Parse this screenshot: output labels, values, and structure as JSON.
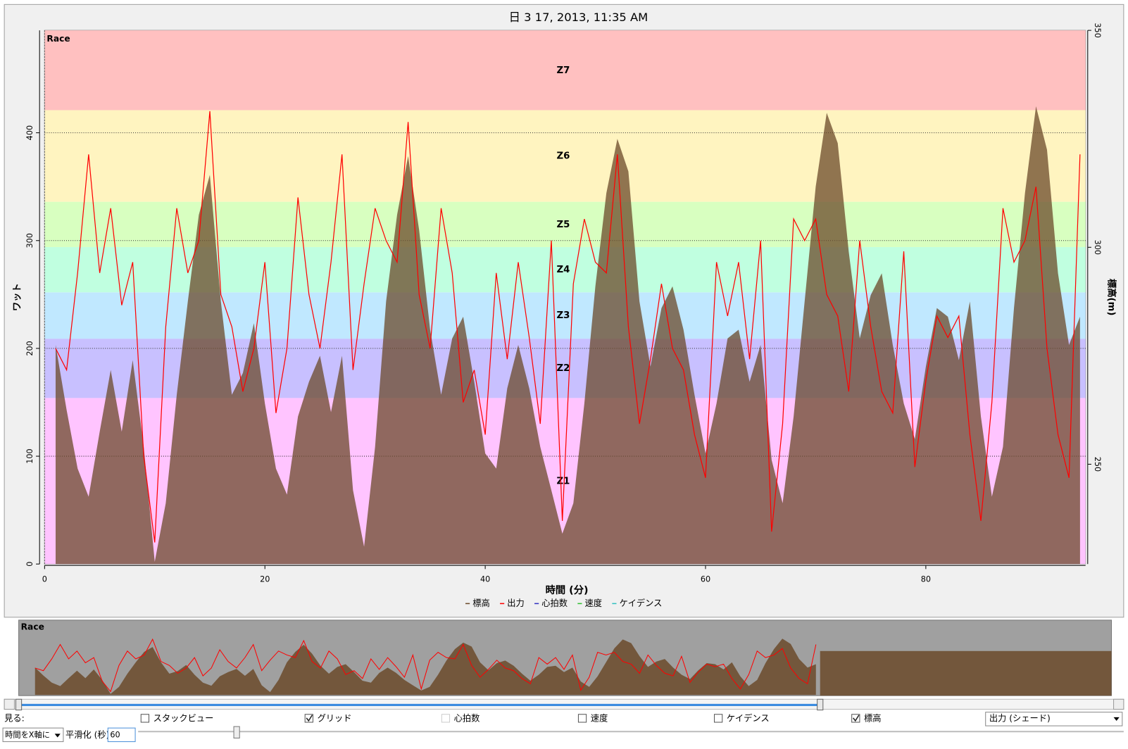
{
  "chart_data": {
    "type": "line",
    "title": "日 3 17, 2013, 11:35 AM",
    "corner_label": "Race",
    "xlabel": "時間 (分)",
    "ylabel": "ワット",
    "y2label": "標高(m)",
    "x": [
      1,
      2,
      3,
      4,
      5,
      6,
      7,
      8,
      9,
      10,
      11,
      12,
      13,
      14,
      15,
      16,
      17,
      18,
      19,
      20,
      21,
      22,
      23,
      24,
      25,
      26,
      27,
      28,
      29,
      30,
      31,
      32,
      33,
      34,
      35,
      36,
      37,
      38,
      39,
      40,
      41,
      42,
      43,
      44,
      45,
      46,
      47,
      48,
      49,
      50,
      51,
      52,
      53,
      54,
      55,
      56,
      57,
      58,
      59,
      60,
      61,
      62,
      63,
      64,
      65,
      66,
      67,
      68,
      69,
      70,
      71,
      72,
      73,
      74,
      75,
      76,
      77,
      78,
      79,
      80,
      81,
      82,
      83,
      84,
      85,
      86,
      87,
      88,
      89,
      90,
      91,
      92,
      93,
      94
    ],
    "xlim": [
      0,
      94.5
    ],
    "xticks": [
      0,
      20,
      40,
      60,
      80
    ],
    "ylim": [
      0,
      495
    ],
    "yticks": [
      0,
      100,
      200,
      300,
      400
    ],
    "y2lim": [
      227,
      350
    ],
    "y2ticks": [
      250,
      300,
      350
    ],
    "grid": true,
    "series": [
      {
        "name": "標高",
        "color": "#6b4a2a",
        "axis": "y2",
        "values": [
          277.5,
          262.5,
          249,
          242.5,
          257.5,
          271.7,
          257.5,
          274,
          254,
          227.5,
          241,
          266,
          287.5,
          307.5,
          316.7,
          287.5,
          266,
          271,
          282.5,
          264,
          249,
          243,
          261,
          269,
          275,
          262,
          275,
          244,
          231,
          254,
          287.5,
          307.5,
          321,
          304,
          281,
          266,
          279,
          284,
          269,
          252.5,
          249,
          267.5,
          277.5,
          267.5,
          254,
          244,
          234,
          241,
          264,
          291,
          312.5,
          325,
          317.5,
          287.5,
          272.5,
          286,
          291,
          281,
          266,
          252.5,
          264,
          279,
          281,
          269,
          277.5,
          251,
          241,
          261,
          287.5,
          314,
          331,
          324,
          299,
          279,
          289,
          294,
          277.5,
          264,
          255.8,
          272.5,
          286,
          284,
          274,
          287.5,
          261,
          242.5,
          254,
          286,
          312.5,
          332.5,
          322.5,
          294,
          277.5,
          284
        ]
      },
      {
        "name": "出力",
        "color": "#ff0000",
        "values": [
          200,
          180,
          270,
          380,
          270,
          330,
          240,
          280,
          100,
          20,
          220,
          330,
          270,
          300,
          420,
          250,
          220,
          160,
          200,
          280,
          140,
          200,
          340,
          250,
          200,
          280,
          380,
          180,
          260,
          330,
          300,
          280,
          410,
          250,
          200,
          330,
          270,
          150,
          180,
          120,
          270,
          190,
          280,
          210,
          130,
          300,
          40,
          260,
          320,
          280,
          270,
          380,
          220,
          130,
          190,
          260,
          200,
          180,
          120,
          80,
          280,
          230,
          280,
          190,
          300,
          30,
          130,
          320,
          300,
          320,
          250,
          230,
          160,
          300,
          220,
          160,
          140,
          290,
          90,
          170,
          230,
          210,
          230,
          120,
          40,
          150,
          330,
          280,
          300,
          350,
          200,
          120,
          80,
          380
        ]
      }
    ],
    "legend_extra": [
      {
        "name": "心拍数",
        "color": "#3030c0"
      },
      {
        "name": "速度",
        "color": "#30c030"
      },
      {
        "name": "ケイデンス",
        "color": "#30c0c0"
      }
    ],
    "zones": [
      {
        "label": "Z1",
        "from": 0,
        "to": 154,
        "color": "#ffc4ff",
        "label_color": "#ff9cff"
      },
      {
        "label": "Z2",
        "from": 154,
        "to": 209,
        "color": "#c8c0ff",
        "label_color": "#a098ff"
      },
      {
        "label": "Z3",
        "from": 209,
        "to": 252,
        "color": "#c0e8ff",
        "label_color": "#90d4f8"
      },
      {
        "label": "Z4",
        "from": 252,
        "to": 294,
        "color": "#c0ffe0",
        "label_color": "#90f0c8"
      },
      {
        "label": "Z5",
        "from": 294,
        "to": 336,
        "color": "#d8ffc0",
        "label_color": "#b0f090"
      },
      {
        "label": "Z6",
        "from": 336,
        "to": 421,
        "color": "#fff4c0",
        "label_color": "#fbe890"
      },
      {
        "label": "Z7",
        "from": 421,
        "to": 495,
        "color": "#ffc0c0",
        "label_color": "#f49898"
      }
    ]
  },
  "overview": {
    "label": "Race"
  },
  "controls": {
    "view_label": "見る:",
    "checkboxes": [
      {
        "label": "スタックビュー",
        "checked": false
      },
      {
        "label": "グリッド",
        "checked": true
      },
      {
        "label": "心拍数",
        "checked": false,
        "disabled": true
      },
      {
        "label": "速度",
        "checked": false
      },
      {
        "label": "ケイデンス",
        "checked": false
      },
      {
        "label": "標高",
        "checked": true
      }
    ],
    "shade_select": "出力 (シェード)",
    "axis_select": "時間をX軸に",
    "smoothing_label": "平滑化 (秒)",
    "smoothing_value": "60"
  }
}
